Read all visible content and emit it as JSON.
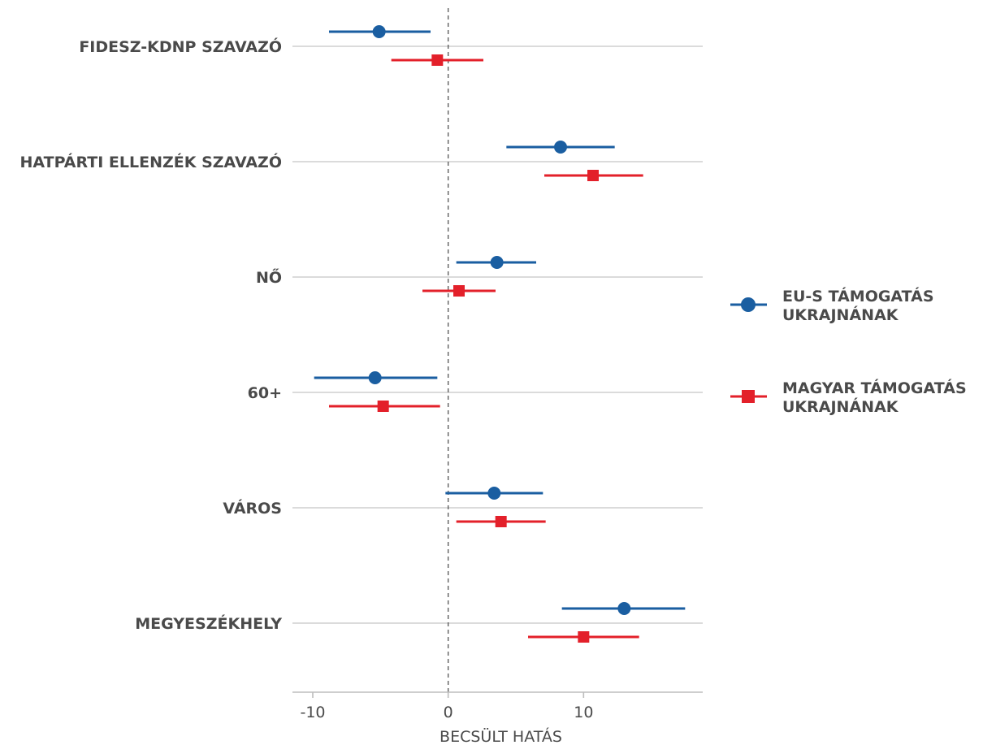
{
  "chart_data": {
    "type": "scatter",
    "subtype": "coefficient-plot",
    "xlabel": "BECSÜLT HATÁS",
    "xlim": [
      -11.5,
      18.8
    ],
    "xticks": [
      -10,
      0,
      10
    ],
    "reference_line": 0,
    "grid": "horizontal",
    "legend_position": "right",
    "categories": [
      "FIDESZ-KDNP SZAVAZÓ",
      "HATPÁRTI ELLENZÉK SZAVAZÓ",
      "NŐ",
      "60+",
      "VÁROS",
      "MEGYESZÉKHELY"
    ],
    "series": [
      {
        "name": "EU-S TÁMOGATÁS UKRAJNÁNAK",
        "marker": "circle",
        "color": "#1a5ea1",
        "estimates": [
          -5.1,
          8.3,
          3.6,
          -5.4,
          3.4,
          13.0
        ],
        "lower": [
          -8.8,
          4.3,
          0.6,
          -9.9,
          -0.2,
          8.4
        ],
        "upper": [
          -1.3,
          12.3,
          6.5,
          -0.8,
          7.0,
          17.5
        ]
      },
      {
        "name": "MAGYAR TÁMOGATÁS UKRAJNÁNAK",
        "marker": "square",
        "color": "#e3202a",
        "estimates": [
          -0.8,
          10.7,
          0.8,
          -4.8,
          3.9,
          10.0
        ],
        "lower": [
          -4.2,
          7.1,
          -1.9,
          -8.8,
          0.6,
          5.9
        ],
        "upper": [
          2.6,
          14.4,
          3.5,
          -0.6,
          7.2,
          14.1
        ]
      }
    ]
  }
}
